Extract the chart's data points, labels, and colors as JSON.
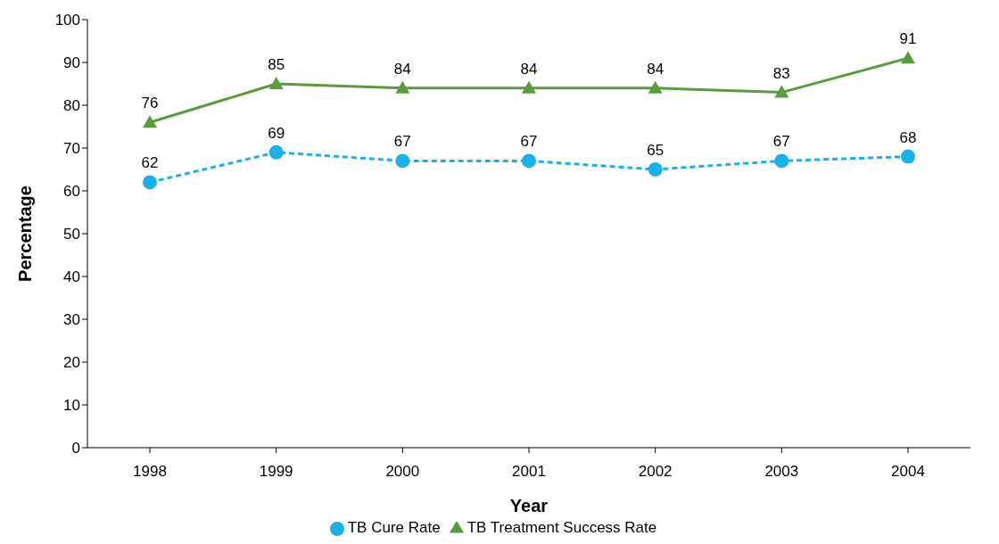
{
  "chart_data": {
    "type": "line",
    "xlabel": "Year",
    "ylabel": "Percentage",
    "categories": [
      "1998",
      "1999",
      "2000",
      "2001",
      "2002",
      "2003",
      "2004"
    ],
    "series": [
      {
        "name": "TB Treatment Success Rate",
        "color": "#5b9b3f",
        "values": [
          76,
          85,
          84,
          84,
          84,
          83,
          91
        ],
        "marker": "triangle",
        "line_style": "solid"
      },
      {
        "name": "TB Cure Rate",
        "color": "#1cb0e8",
        "values": [
          62,
          69,
          67,
          67,
          65,
          67,
          68
        ],
        "marker": "circle",
        "line_style": "dashed"
      }
    ],
    "ylim": [
      0,
      100
    ],
    "yticks": [
      0,
      10,
      20,
      30,
      40,
      50,
      60,
      70,
      80,
      90,
      100
    ],
    "grid": false,
    "legend": "bottom",
    "data_labels": true
  }
}
